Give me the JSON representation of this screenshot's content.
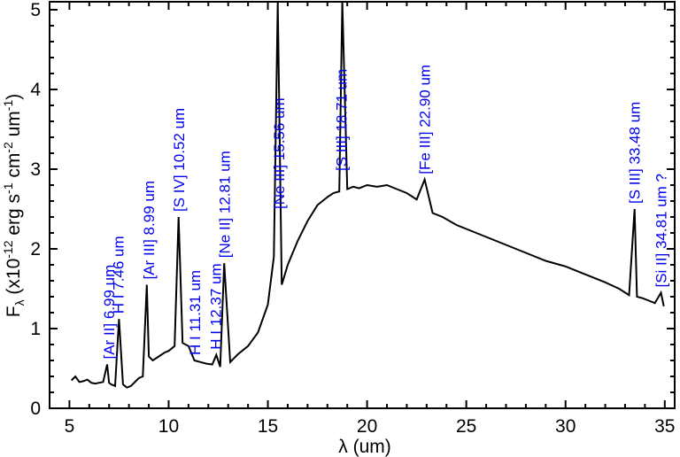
{
  "chart_data": {
    "type": "line",
    "xlabel": "λ (um)",
    "ylabel": "Fλ (x10⁻¹² erg s⁻¹ cm⁻² um⁻¹)",
    "xlim": [
      4.0,
      35.5
    ],
    "ylim": [
      0,
      5.1
    ],
    "x_ticks": [
      5,
      10,
      15,
      20,
      25,
      30,
      35
    ],
    "y_ticks": [
      0,
      1,
      2,
      3,
      4,
      5
    ],
    "grid": false,
    "line_color": "#000000",
    "label_color": "#0000ee",
    "series": [
      {
        "x": [
          5.1,
          5.3,
          5.5,
          5.7,
          5.9,
          6.1,
          6.3,
          6.5,
          6.7,
          6.9,
          7.0,
          7.1,
          7.3,
          7.5,
          7.7,
          7.9,
          8.1,
          8.3,
          8.5,
          8.7,
          8.9,
          9.0,
          9.2,
          9.5,
          9.8,
          10.0,
          10.3,
          10.5,
          10.7,
          11.0,
          11.3,
          11.6,
          11.9,
          12.2,
          12.4,
          12.6,
          12.8,
          13.1,
          13.5,
          14.0,
          14.5,
          15.0,
          15.3,
          15.5,
          15.7,
          16.0,
          16.5,
          17.0,
          17.5,
          18.0,
          18.3,
          18.6,
          18.75,
          19.0,
          19.3,
          19.6,
          20.0,
          20.5,
          21.0,
          21.5,
          22.0,
          22.5,
          22.9,
          23.3,
          23.8,
          24.5,
          25.0,
          26.0,
          27.0,
          28.0,
          29.0,
          30.0,
          31.0,
          32.0,
          32.7,
          33.2,
          33.48,
          33.6,
          33.9,
          34.2,
          34.5,
          34.81,
          34.95
        ],
        "y": [
          0.35,
          0.4,
          0.33,
          0.34,
          0.36,
          0.32,
          0.31,
          0.32,
          0.33,
          0.55,
          0.32,
          0.3,
          0.28,
          1.12,
          0.3,
          0.26,
          0.28,
          0.33,
          0.38,
          0.4,
          1.55,
          0.65,
          0.6,
          0.65,
          0.7,
          0.72,
          0.78,
          2.4,
          0.82,
          0.78,
          0.6,
          0.58,
          0.56,
          0.55,
          0.67,
          0.52,
          1.82,
          0.58,
          0.68,
          0.78,
          0.95,
          1.3,
          1.9,
          5.1,
          1.55,
          1.8,
          2.1,
          2.35,
          2.55,
          2.65,
          2.7,
          2.72,
          5.1,
          2.75,
          2.78,
          2.76,
          2.8,
          2.78,
          2.8,
          2.75,
          2.7,
          2.62,
          2.87,
          2.45,
          2.4,
          2.3,
          2.25,
          2.15,
          2.05,
          1.95,
          1.85,
          1.78,
          1.68,
          1.58,
          1.5,
          1.42,
          2.5,
          1.4,
          1.38,
          1.35,
          1.32,
          1.45,
          1.28
        ]
      }
    ],
    "annotations": [
      {
        "text": "[Ar II] 6.99 um",
        "x": 6.99
      },
      {
        "text": "H I 7.46 um",
        "x": 7.46
      },
      {
        "text": "[Ar III] 8.99 um",
        "x": 8.99
      },
      {
        "text": "[S IV] 10.52 um",
        "x": 10.52
      },
      {
        "text": "H I 11.31 um",
        "x": 11.31
      },
      {
        "text": "H I 12.37 um",
        "x": 12.37
      },
      {
        "text": "[Ne II] 12.81 um",
        "x": 12.81
      },
      {
        "text": "[Ne III] 15.56 um",
        "x": 15.56
      },
      {
        "text": "[S III] 18.71 um",
        "x": 18.71
      },
      {
        "text": "[Fe III] 22.90 um",
        "x": 22.9
      },
      {
        "text": "[S III] 33.48 um",
        "x": 33.48
      },
      {
        "text": "[Si II] 34.81 um ?",
        "x": 34.81
      }
    ]
  }
}
